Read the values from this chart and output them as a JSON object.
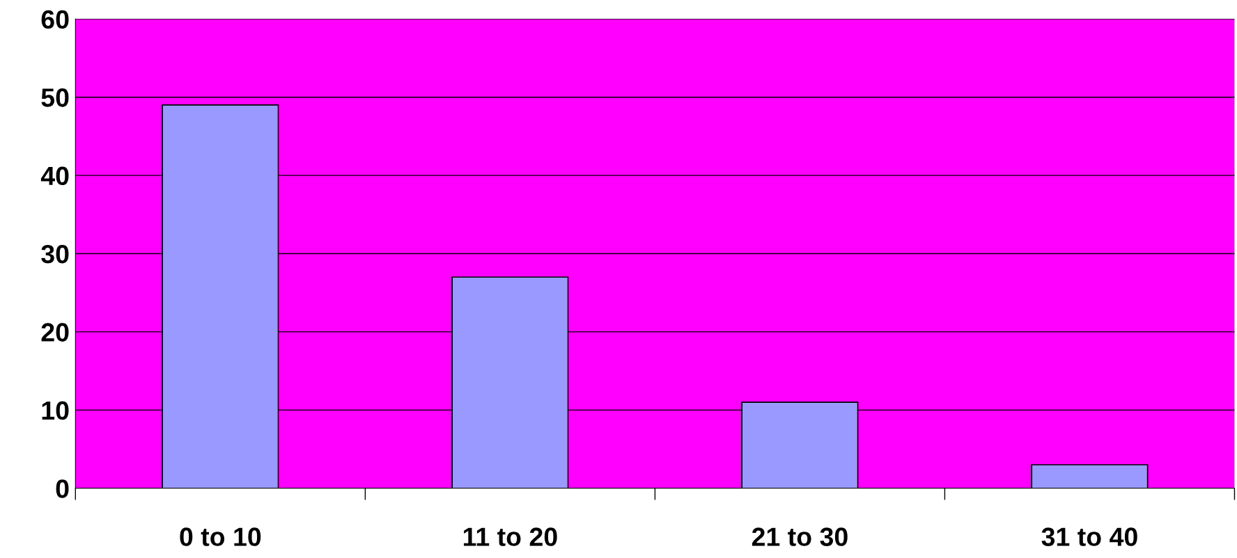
{
  "chart_data": {
    "type": "bar",
    "categories": [
      "0 to 10",
      "11 to 20",
      "21 to 30",
      "31 to 40"
    ],
    "values": [
      49,
      27,
      11,
      3
    ],
    "color": "#9999ff",
    "ylim": [
      0,
      60
    ],
    "yticks": [
      0,
      10,
      20,
      30,
      40,
      50,
      60
    ],
    "grid": "y"
  }
}
